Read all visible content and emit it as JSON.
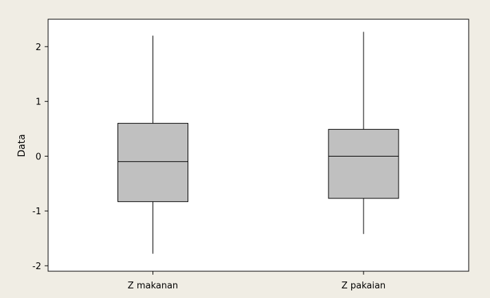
{
  "chart_data": {
    "type": "boxplot",
    "title": "",
    "xlabel": "",
    "ylabel": "Data",
    "ylim": [
      -2.1,
      2.5
    ],
    "yticks": [
      -2,
      -1,
      0,
      1,
      2
    ],
    "ytick_labels": [
      "-2",
      "-1",
      "0",
      "1",
      "2"
    ],
    "categories": [
      "Z makanan",
      "Z pakaian"
    ],
    "grid": false,
    "legend": "none",
    "colors": {
      "box_fill": "#c0c0c0",
      "plot_bg": "#ffffff",
      "page_bg": "#f0ede4",
      "stroke": "#000000"
    },
    "series": [
      {
        "category": "Z makanan",
        "whisker_low": -1.78,
        "q1": -0.83,
        "median": -0.1,
        "q3": 0.6,
        "whisker_high": 2.2
      },
      {
        "category": "Z pakaian",
        "whisker_low": -1.42,
        "q1": -0.77,
        "median": 0.0,
        "q3": 0.49,
        "whisker_high": 2.27
      }
    ]
  }
}
